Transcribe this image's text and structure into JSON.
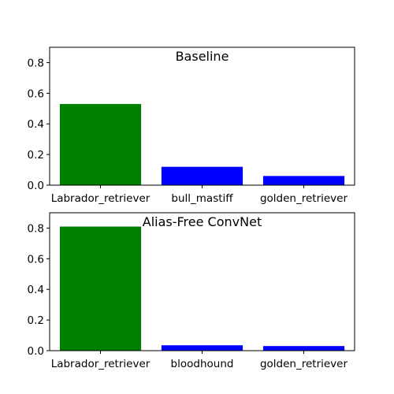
{
  "chart_data": [
    {
      "type": "bar",
      "title": "Baseline",
      "categories": [
        "Labrador_retriever",
        "bull_mastiff",
        "golden_retriever"
      ],
      "values": [
        0.53,
        0.12,
        0.06
      ],
      "colors": [
        "#008000",
        "#0000ff",
        "#0000ff"
      ],
      "ylim": [
        0,
        0.9
      ],
      "yticks": [
        0.0,
        0.2,
        0.4,
        0.6,
        0.8
      ],
      "ytick_labels": [
        "0.0",
        "0.2",
        "0.4",
        "0.6",
        "0.8"
      ],
      "xlabel": "",
      "ylabel": "",
      "grid": false
    },
    {
      "type": "bar",
      "title": "Alias-Free ConvNet",
      "categories": [
        "Labrador_retriever",
        "bloodhound",
        "golden_retriever"
      ],
      "values": [
        0.81,
        0.035,
        0.03
      ],
      "colors": [
        "#008000",
        "#0000ff",
        "#0000ff"
      ],
      "ylim": [
        0,
        0.9
      ],
      "yticks": [
        0.0,
        0.2,
        0.4,
        0.6,
        0.8
      ],
      "ytick_labels": [
        "0.0",
        "0.2",
        "0.4",
        "0.6",
        "0.8"
      ],
      "xlabel": "",
      "ylabel": "",
      "grid": false
    }
  ]
}
